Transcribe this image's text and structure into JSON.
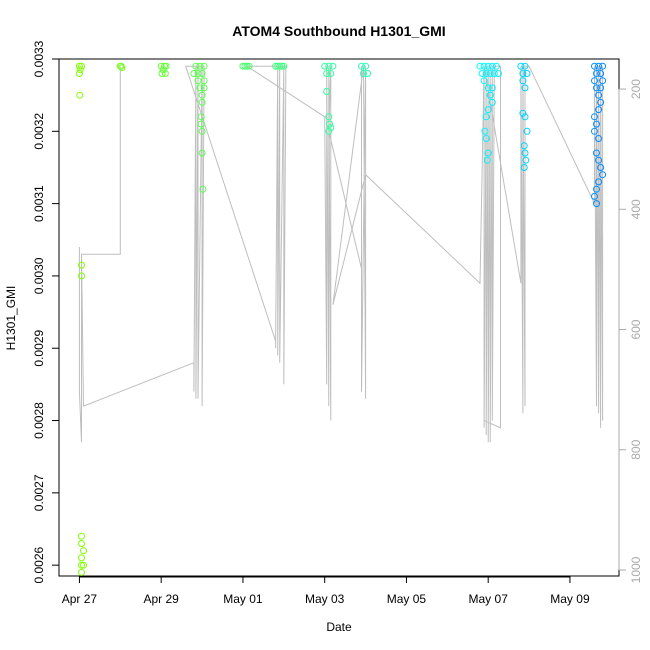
{
  "chart_data": {
    "type": "scatter",
    "title": "ATOM4 Southbound H1301_GMI",
    "xlabel": "Date",
    "ylabel": "H1301_GMI",
    "x_ticks": [
      "Apr 27",
      "Apr 29",
      "May 01",
      "May 03",
      "May 05",
      "May 07",
      "May 09"
    ],
    "x_tick_days": [
      0,
      2,
      4,
      6,
      8,
      10,
      12
    ],
    "xlim": [
      -0.5,
      13.2
    ],
    "y_ticks": [
      "0.0026",
      "0.0027",
      "0.0028",
      "0.0029",
      "0.0030",
      "0.0031",
      "0.0032",
      "0.0033"
    ],
    "y_tick_values": [
      0.0026,
      0.0027,
      0.0028,
      0.0029,
      0.003,
      0.0031,
      0.0032,
      0.0033
    ],
    "ylim": [
      0.002585,
      0.0033
    ],
    "right_axis": {
      "color": "#aaaaaa",
      "tick_labels": [
        "200",
        "400",
        "600",
        "800",
        "1000"
      ],
      "tick_values": [
        200,
        400,
        600,
        800,
        1000
      ],
      "lim": [
        1010,
        150
      ]
    },
    "flight_track": [
      [
        0.0,
        0.00304
      ],
      [
        0.0,
        0.00284
      ],
      [
        0.05,
        0.00277
      ],
      [
        0.05,
        0.00303
      ],
      [
        1.0,
        0.00303
      ],
      [
        1.0,
        0.00329
      ],
      [
        1.0,
        0.00303
      ],
      [
        0.05,
        0.00303
      ],
      [
        0.1,
        0.00282
      ],
      [
        2.8,
        0.00288
      ],
      [
        2.8,
        0.00284
      ],
      [
        2.85,
        0.00329
      ],
      [
        2.85,
        0.00283
      ],
      [
        2.9,
        0.00329
      ],
      [
        2.9,
        0.00283
      ],
      [
        3.0,
        0.00329
      ],
      [
        3.0,
        0.00282
      ],
      [
        3.05,
        0.00329
      ],
      [
        2.6,
        0.00329
      ],
      [
        4.8,
        0.00291
      ],
      [
        4.8,
        0.0029
      ],
      [
        4.85,
        0.00329
      ],
      [
        4.85,
        0.00289
      ],
      [
        4.9,
        0.00329
      ],
      [
        4.9,
        0.00288
      ],
      [
        5.0,
        0.00329
      ],
      [
        5.0,
        0.00285
      ],
      [
        5.05,
        0.00329
      ],
      [
        4.1,
        0.00329
      ],
      [
        6.0,
        0.00322
      ],
      [
        6.05,
        0.00285
      ],
      [
        6.05,
        0.00329
      ],
      [
        6.1,
        0.00282
      ],
      [
        6.1,
        0.00329
      ],
      [
        6.15,
        0.0028
      ],
      [
        6.15,
        0.00329
      ],
      [
        6.1,
        0.0032
      ],
      [
        6.9,
        0.00301
      ],
      [
        6.9,
        0.00329
      ],
      [
        6.9,
        0.00284
      ],
      [
        7.0,
        0.00329
      ],
      [
        7.0,
        0.00283
      ],
      [
        6.95,
        0.00329
      ],
      [
        6.2,
        0.00296
      ],
      [
        7.0,
        0.00314
      ],
      [
        9.8,
        0.00299
      ],
      [
        9.9,
        0.00329
      ],
      [
        9.9,
        0.00279
      ],
      [
        9.95,
        0.00329
      ],
      [
        9.95,
        0.00278
      ],
      [
        10.0,
        0.00329
      ],
      [
        10.0,
        0.00277
      ],
      [
        10.05,
        0.00329
      ],
      [
        10.05,
        0.00277
      ],
      [
        10.1,
        0.00329
      ],
      [
        10.1,
        0.0028
      ],
      [
        10.15,
        0.00329
      ],
      [
        10.3,
        0.00329
      ],
      [
        10.3,
        0.00279
      ],
      [
        9.9,
        0.0028
      ],
      [
        9.9,
        0.00329
      ],
      [
        10.8,
        0.00299
      ],
      [
        10.8,
        0.00329
      ],
      [
        10.85,
        0.00281
      ],
      [
        10.85,
        0.00329
      ],
      [
        10.9,
        0.00282
      ],
      [
        10.9,
        0.00329
      ],
      [
        10.9,
        0.00296
      ],
      [
        10.9,
        0.00329
      ],
      [
        11.0,
        0.00329
      ],
      [
        12.6,
        0.0031
      ],
      [
        12.6,
        0.00329
      ],
      [
        12.65,
        0.00282
      ],
      [
        12.65,
        0.00329
      ],
      [
        12.7,
        0.00281
      ],
      [
        12.7,
        0.00329
      ],
      [
        12.75,
        0.00279
      ],
      [
        12.75,
        0.00329
      ],
      [
        12.8,
        0.0028
      ],
      [
        12.8,
        0.00329
      ]
    ],
    "series_points": [
      [
        0.0,
        0.00329
      ],
      [
        0.0,
        0.00328
      ],
      [
        0.02,
        0.003285
      ],
      [
        0.05,
        0.00329
      ],
      [
        0.01,
        0.00325
      ],
      [
        0.05,
        0.003015
      ],
      [
        0.05,
        0.003
      ],
      [
        0.05,
        0.00264
      ],
      [
        0.05,
        0.00263
      ],
      [
        0.05,
        0.00261
      ],
      [
        0.05,
        0.0026
      ],
      [
        0.05,
        0.00259
      ],
      [
        0.1,
        0.0026
      ],
      [
        0.1,
        0.00262
      ],
      [
        1.0,
        0.00329
      ],
      [
        1.02,
        0.00329
      ],
      [
        1.04,
        0.003288
      ],
      [
        2.0,
        0.00329
      ],
      [
        2.02,
        0.00328
      ],
      [
        2.05,
        0.003285
      ],
      [
        2.08,
        0.00329
      ],
      [
        2.1,
        0.00328
      ],
      [
        2.12,
        0.00329
      ],
      [
        2.8,
        0.00328
      ],
      [
        2.85,
        0.00329
      ],
      [
        2.9,
        0.00328
      ],
      [
        2.95,
        0.00329
      ],
      [
        3.0,
        0.00328
      ],
      [
        3.05,
        0.00329
      ],
      [
        2.9,
        0.00327
      ],
      [
        2.95,
        0.00326
      ],
      [
        3.0,
        0.00325
      ],
      [
        3.05,
        0.00327
      ],
      [
        3.0,
        0.00324
      ],
      [
        2.98,
        0.00322
      ],
      [
        3.0,
        0.0032
      ],
      [
        3.0,
        0.00317
      ],
      [
        3.02,
        0.00312
      ],
      [
        3.05,
        0.00326
      ],
      [
        2.98,
        0.00321
      ],
      [
        4.0,
        0.00329
      ],
      [
        4.05,
        0.00329
      ],
      [
        4.1,
        0.00329
      ],
      [
        4.15,
        0.00329
      ],
      [
        4.8,
        0.00329
      ],
      [
        4.85,
        0.00329
      ],
      [
        4.9,
        0.00329
      ],
      [
        4.95,
        0.00329
      ],
      [
        5.0,
        0.00329
      ],
      [
        6.0,
        0.00329
      ],
      [
        6.05,
        0.00328
      ],
      [
        6.1,
        0.00329
      ],
      [
        6.15,
        0.00328
      ],
      [
        6.2,
        0.00329
      ],
      [
        6.05,
        0.003255
      ],
      [
        6.1,
        0.00322
      ],
      [
        6.12,
        0.00321
      ],
      [
        6.15,
        0.003205
      ],
      [
        6.1,
        0.0032
      ],
      [
        6.9,
        0.00329
      ],
      [
        6.95,
        0.00328
      ],
      [
        7.0,
        0.00329
      ],
      [
        7.05,
        0.00328
      ],
      [
        9.8,
        0.00329
      ],
      [
        9.85,
        0.00328
      ],
      [
        9.9,
        0.00329
      ],
      [
        9.95,
        0.00328
      ],
      [
        10.0,
        0.00329
      ],
      [
        10.05,
        0.00328
      ],
      [
        10.1,
        0.00329
      ],
      [
        10.15,
        0.00328
      ],
      [
        10.2,
        0.00329
      ],
      [
        10.25,
        0.00328
      ],
      [
        9.9,
        0.00327
      ],
      [
        10.0,
        0.00326
      ],
      [
        10.05,
        0.00325
      ],
      [
        10.1,
        0.00324
      ],
      [
        9.95,
        0.00322
      ],
      [
        9.92,
        0.0032
      ],
      [
        9.95,
        0.00319
      ],
      [
        10.0,
        0.00323
      ],
      [
        10.05,
        0.00325
      ],
      [
        10.1,
        0.00326
      ],
      [
        10.0,
        0.00317
      ],
      [
        9.98,
        0.00316
      ],
      [
        10.8,
        0.00329
      ],
      [
        10.85,
        0.00328
      ],
      [
        10.9,
        0.00329
      ],
      [
        10.95,
        0.00328
      ],
      [
        10.85,
        0.00327
      ],
      [
        10.9,
        0.00326
      ],
      [
        10.85,
        0.003225
      ],
      [
        10.9,
        0.00322
      ],
      [
        10.95,
        0.0032
      ],
      [
        10.88,
        0.00318
      ],
      [
        10.9,
        0.00317
      ],
      [
        10.92,
        0.00316
      ],
      [
        10.88,
        0.00315
      ],
      [
        12.6,
        0.00329
      ],
      [
        12.65,
        0.00328
      ],
      [
        12.7,
        0.00329
      ],
      [
        12.75,
        0.00328
      ],
      [
        12.8,
        0.00329
      ],
      [
        12.6,
        0.00327
      ],
      [
        12.65,
        0.00326
      ],
      [
        12.7,
        0.00325
      ],
      [
        12.75,
        0.00324
      ],
      [
        12.6,
        0.00322
      ],
      [
        12.65,
        0.00321
      ],
      [
        12.6,
        0.0032
      ],
      [
        12.7,
        0.00319
      ],
      [
        12.65,
        0.00317
      ],
      [
        12.7,
        0.00316
      ],
      [
        12.75,
        0.00315
      ],
      [
        12.8,
        0.00314
      ],
      [
        12.7,
        0.00313
      ],
      [
        12.65,
        0.00312
      ],
      [
        12.6,
        0.00311
      ],
      [
        12.65,
        0.0031
      ],
      [
        12.8,
        0.00327
      ],
      [
        12.75,
        0.00326
      ],
      [
        12.7,
        0.00323
      ]
    ],
    "grid": false,
    "legend": "none",
    "colors": {
      "track": "#bebebe",
      "axis": "#000000",
      "right_axis": "#aaaaaa",
      "palette_start": "#80ff00",
      "palette_mid": "#00ffff",
      "palette_end": "#0080ff"
    }
  }
}
